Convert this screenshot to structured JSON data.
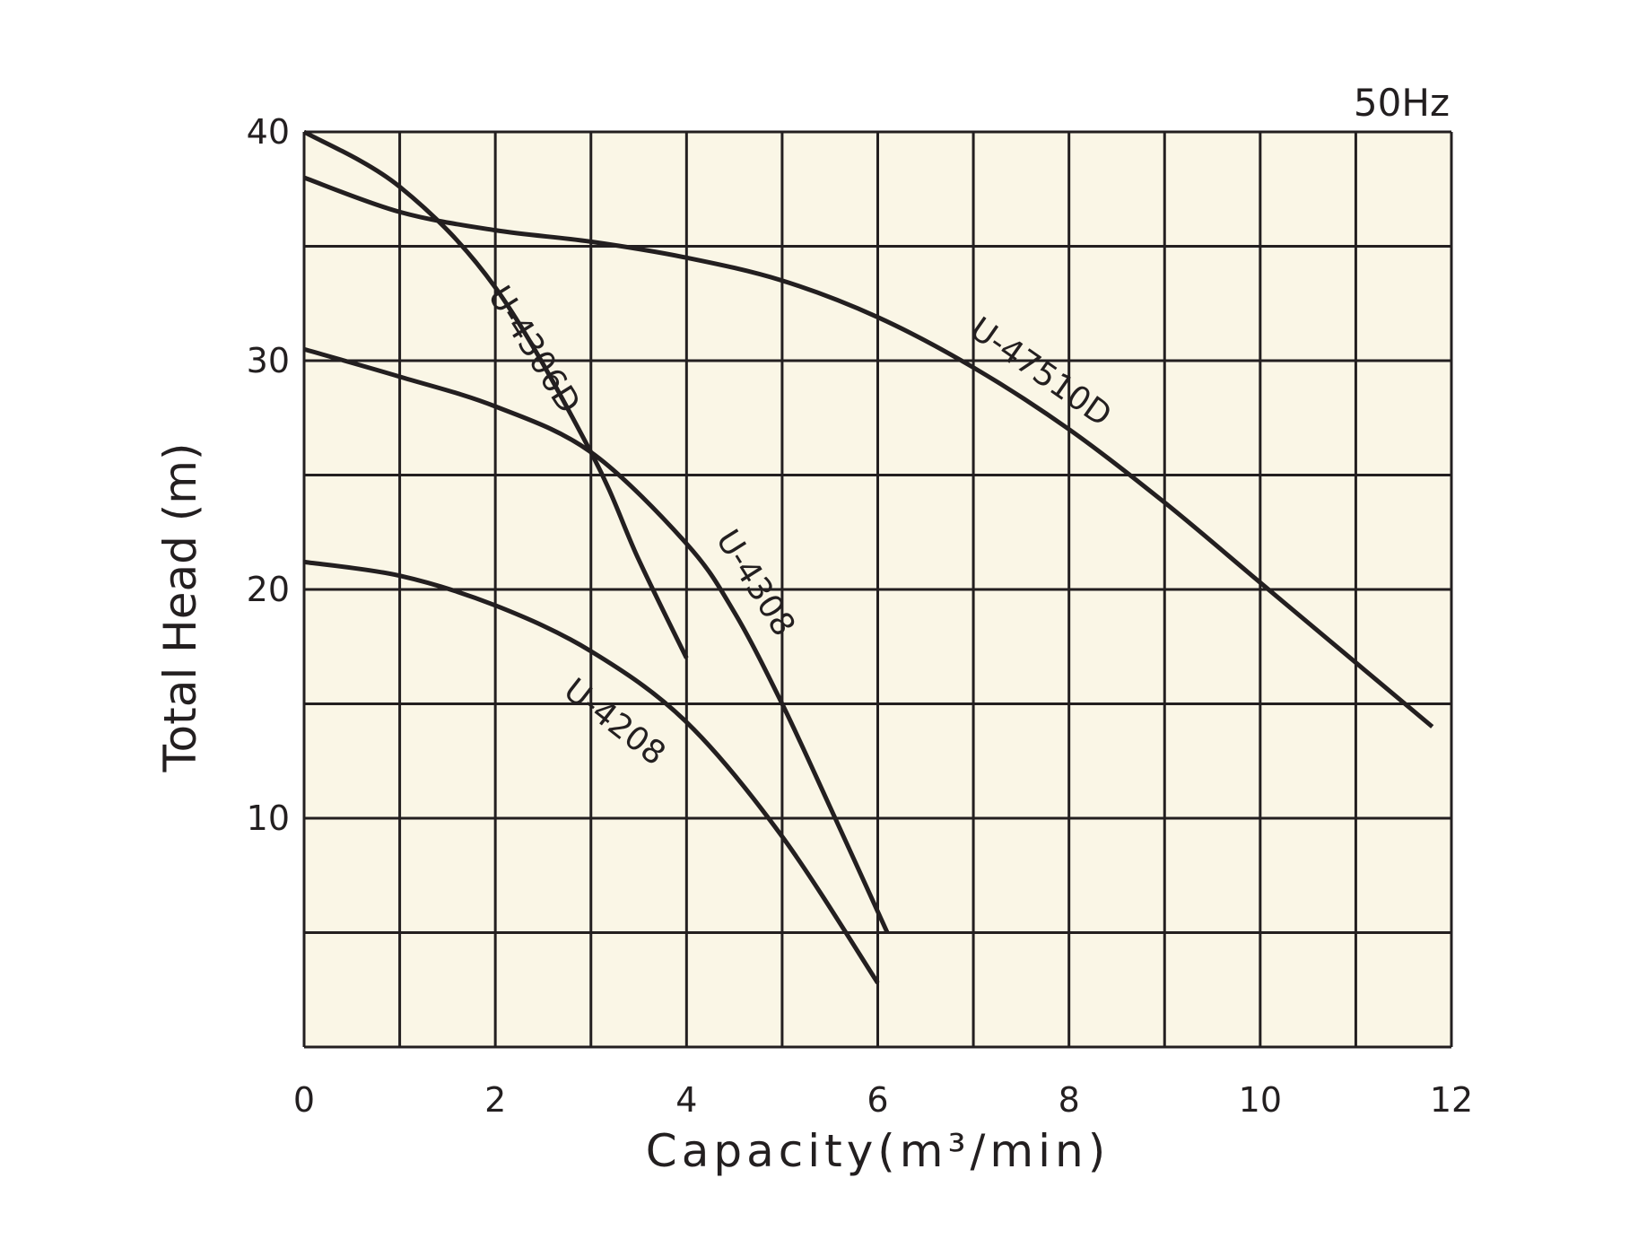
{
  "chart_data": {
    "type": "line",
    "frequency_label": "50Hz",
    "xlabel": "Capacity(m³/min)",
    "ylabel": "Total Head (m)",
    "xlim": [
      0,
      12
    ],
    "ylim": [
      0,
      40
    ],
    "x_ticks": [
      0,
      2,
      4,
      6,
      8,
      10,
      12
    ],
    "y_ticks": [
      10,
      20,
      30,
      40
    ],
    "x_grid_step": 1,
    "y_grid_step": 5,
    "grid": true,
    "colors": {
      "background": "#faf6e6",
      "line": "#231f20"
    },
    "series": [
      {
        "name": "U-4306D",
        "points": [
          [
            0,
            40
          ],
          [
            1,
            37.6
          ],
          [
            2,
            33.2
          ],
          [
            3,
            26
          ],
          [
            3.5,
            21.3
          ],
          [
            4,
            17
          ]
        ]
      },
      {
        "name": "U-47510D",
        "points": [
          [
            0,
            38
          ],
          [
            1,
            36.5
          ],
          [
            2,
            35.7
          ],
          [
            3,
            35.2
          ],
          [
            4,
            34.5
          ],
          [
            5,
            33.5
          ],
          [
            6,
            31.9
          ],
          [
            7,
            29.7
          ],
          [
            8,
            27
          ],
          [
            9,
            23.8
          ],
          [
            10,
            20.3
          ],
          [
            11,
            16.8
          ],
          [
            11.8,
            14
          ]
        ]
      },
      {
        "name": "U-4308",
        "points": [
          [
            0,
            30.5
          ],
          [
            1,
            29.3
          ],
          [
            2,
            28
          ],
          [
            3,
            26
          ],
          [
            4,
            22
          ],
          [
            4.5,
            19
          ],
          [
            5,
            15
          ],
          [
            5.5,
            10.5
          ],
          [
            6.1,
            5
          ]
        ]
      },
      {
        "name": "U-4208",
        "points": [
          [
            0,
            21.2
          ],
          [
            1,
            20.6
          ],
          [
            2,
            19.3
          ],
          [
            3,
            17.3
          ],
          [
            4,
            14.2
          ],
          [
            5,
            9.2
          ],
          [
            6,
            2.8
          ]
        ]
      }
    ]
  }
}
